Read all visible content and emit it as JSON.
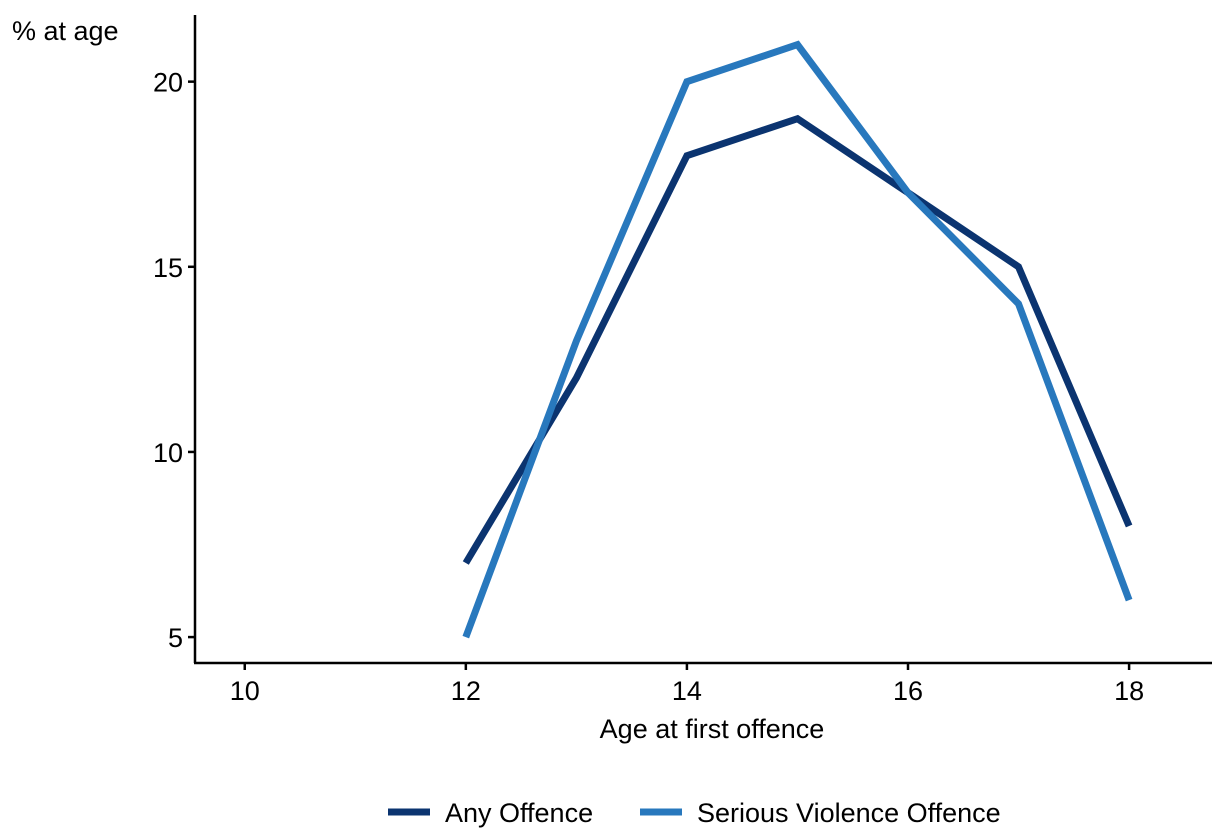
{
  "chart_data": {
    "type": "line",
    "title": "",
    "xlabel": "Age at first offence",
    "ylabel": "% at age",
    "xlim": [
      9.55,
      18.75
    ],
    "ylim": [
      4.3,
      21.8
    ],
    "xticks": [
      10,
      12,
      14,
      16,
      18
    ],
    "yticks": [
      5,
      10,
      15,
      20
    ],
    "grid": false,
    "legend_position": "bottom",
    "series": [
      {
        "name": "Any Offence",
        "color": "#0b3470",
        "x": [
          12,
          13,
          14,
          15,
          16,
          17,
          18
        ],
        "values": [
          7,
          12,
          18,
          19,
          17,
          15,
          8
        ]
      },
      {
        "name": "Serious Violence Offence",
        "color": "#2878bd",
        "x": [
          12,
          13,
          14,
          15,
          16,
          17,
          18
        ],
        "values": [
          5,
          13,
          20,
          21,
          17,
          14,
          6
        ]
      }
    ]
  }
}
